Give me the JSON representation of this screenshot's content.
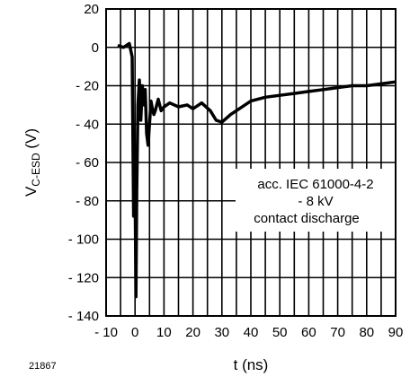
{
  "figure_id": "21867",
  "chart_data": {
    "type": "line",
    "xlabel": "t (ns)",
    "ylabel_main": "V",
    "ylabel_sub": "C-ESD",
    "ylabel_unit": " (V)",
    "xlim": [
      -10,
      90
    ],
    "ylim": [
      -140,
      20
    ],
    "xticks": [
      -10,
      0,
      10,
      20,
      30,
      40,
      50,
      60,
      70,
      80,
      90
    ],
    "xtick_labels": [
      "- 10",
      "0",
      "10",
      "20",
      "30",
      "40",
      "50",
      "60",
      "70",
      "80",
      "90"
    ],
    "yticks": [
      20,
      0,
      -20,
      -40,
      -60,
      -80,
      -100,
      -120,
      -140
    ],
    "ytick_labels": [
      "20",
      "0",
      "- 20",
      "- 40",
      "- 60",
      "- 80",
      "- 100",
      "- 120",
      "- 140"
    ],
    "grid": true,
    "annotation": [
      "acc. IEC 61000-4-2",
      "- 8 kV",
      "contact discharge"
    ],
    "series": [
      {
        "color": "#000000",
        "x": [
          -6,
          -4,
          -2,
          -1,
          -0.5,
          0,
          0.3,
          0.6,
          1,
          1.5,
          2,
          2.5,
          3,
          3.5,
          4,
          4.5,
          5,
          5.5,
          6,
          6.5,
          7,
          8,
          9,
          10,
          12,
          15,
          18,
          20,
          23,
          26,
          28,
          30,
          33,
          36,
          40,
          45,
          50,
          55,
          60,
          65,
          70,
          75,
          80,
          85,
          90
        ],
        "y": [
          1,
          0,
          2,
          -5,
          -88,
          -72,
          -130,
          -75,
          -30,
          -17,
          -38,
          -20,
          -30,
          -22,
          -45,
          -51,
          -40,
          -28,
          -32,
          -35,
          -33,
          -27,
          -33,
          -31,
          -29,
          -31,
          -30,
          -32,
          -29,
          -33,
          -38,
          -39,
          -35,
          -32,
          -28,
          -26,
          -25,
          -24,
          -23,
          -22,
          -21,
          -20,
          -20,
          -19,
          -18
        ]
      }
    ]
  }
}
